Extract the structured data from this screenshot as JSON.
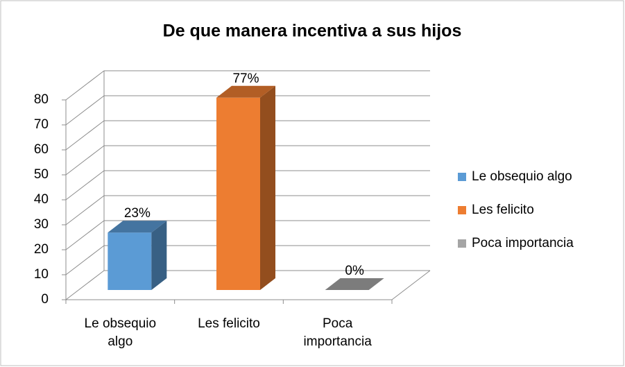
{
  "chart_data": {
    "type": "bar",
    "title": "De que manera incentiva a sus hijos",
    "categories": [
      "Le obsequio algo",
      "Les felicito",
      "Poca importancia"
    ],
    "values": [
      23,
      77,
      0
    ],
    "value_labels": [
      "23%",
      "77%",
      "0%"
    ],
    "colors": [
      "#5b9bd5",
      "#ed7d31",
      "#a5a5a5"
    ],
    "ylim": [
      0,
      80
    ],
    "yticks": [
      0,
      10,
      20,
      30,
      40,
      50,
      60,
      70,
      80
    ],
    "grid": true,
    "legend": "right"
  }
}
